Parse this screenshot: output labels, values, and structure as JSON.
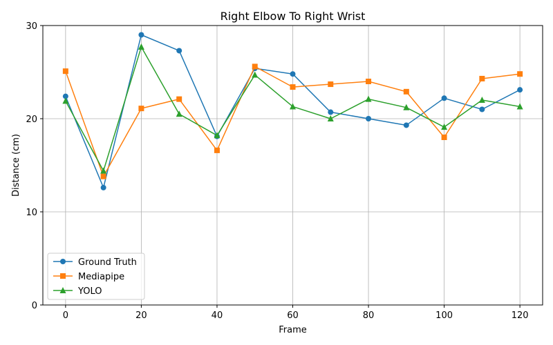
{
  "chart_data": {
    "type": "line",
    "title": "Right Elbow To Right Wrist",
    "xlabel": "Frame",
    "ylabel": "Distance (cm)",
    "x": [
      0,
      10,
      20,
      30,
      40,
      50,
      60,
      70,
      80,
      90,
      100,
      110,
      120
    ],
    "xlim": [
      -6,
      126
    ],
    "ylim": [
      0,
      30
    ],
    "xticks": [
      0,
      20,
      40,
      60,
      80,
      100,
      120
    ],
    "yticks": [
      0,
      10,
      20,
      30
    ],
    "grid": true,
    "legend_position": "lower-left",
    "series": [
      {
        "name": "Ground Truth",
        "color": "#1f77b4",
        "marker": "circle",
        "values": [
          22.4,
          12.6,
          29.0,
          27.3,
          18.1,
          25.4,
          24.8,
          20.7,
          20.0,
          19.3,
          22.2,
          21.0,
          23.1
        ]
      },
      {
        "name": "Mediapipe",
        "color": "#ff7f0e",
        "marker": "square",
        "values": [
          25.1,
          13.8,
          21.1,
          22.1,
          16.6,
          25.6,
          23.4,
          23.7,
          24.0,
          22.9,
          18.0,
          24.3,
          24.8
        ]
      },
      {
        "name": "YOLO",
        "color": "#2ca02c",
        "marker": "triangle",
        "values": [
          21.9,
          14.4,
          27.7,
          20.5,
          18.2,
          24.7,
          21.3,
          20.0,
          22.1,
          21.2,
          19.1,
          22.0,
          21.3
        ]
      }
    ]
  }
}
